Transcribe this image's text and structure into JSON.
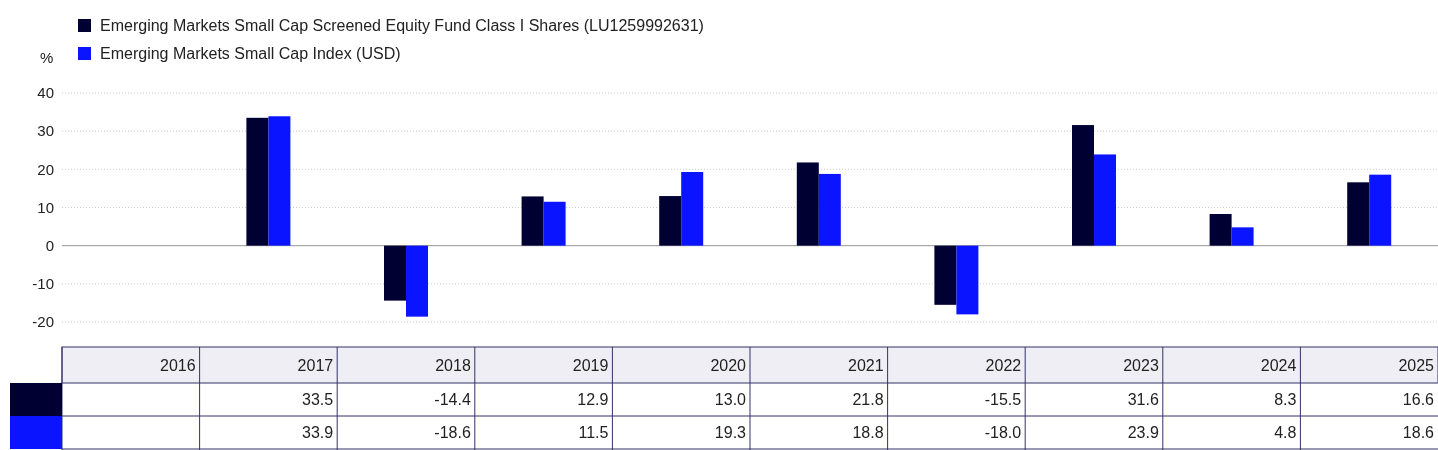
{
  "chart_data": {
    "type": "bar",
    "ylabel": "%",
    "categories": [
      "2016",
      "2017",
      "2018",
      "2019",
      "2020",
      "2021",
      "2022",
      "2023",
      "2024",
      "2025"
    ],
    "series": [
      {
        "name": "Emerging Markets Small Cap Screened Equity Fund Class I Shares (LU1259992631)",
        "color": "#000033",
        "values": [
          null,
          33.5,
          -14.4,
          12.9,
          13.0,
          21.8,
          -15.5,
          31.6,
          8.3,
          16.6
        ],
        "value_labels": [
          null,
          "33.5",
          "-14.4",
          "12.9",
          "13.0",
          "21.8",
          "-15.5",
          "31.6",
          "8.3",
          "16.6"
        ]
      },
      {
        "name": "Emerging Markets Small Cap Index (USD)",
        "color": "#0a14ff",
        "values": [
          null,
          33.9,
          -18.6,
          11.5,
          19.3,
          18.8,
          -18.0,
          23.9,
          4.8,
          18.6
        ],
        "value_labels": [
          null,
          "33.9",
          "-18.6",
          "11.5",
          "19.3",
          "18.8",
          "-18.0",
          "23.9",
          "4.8",
          "18.6"
        ]
      }
    ],
    "ylim": [
      -20,
      40
    ],
    "yticks": [
      -20,
      -10,
      0,
      10,
      20,
      30,
      40
    ],
    "grid": "y",
    "legend": "top left"
  }
}
